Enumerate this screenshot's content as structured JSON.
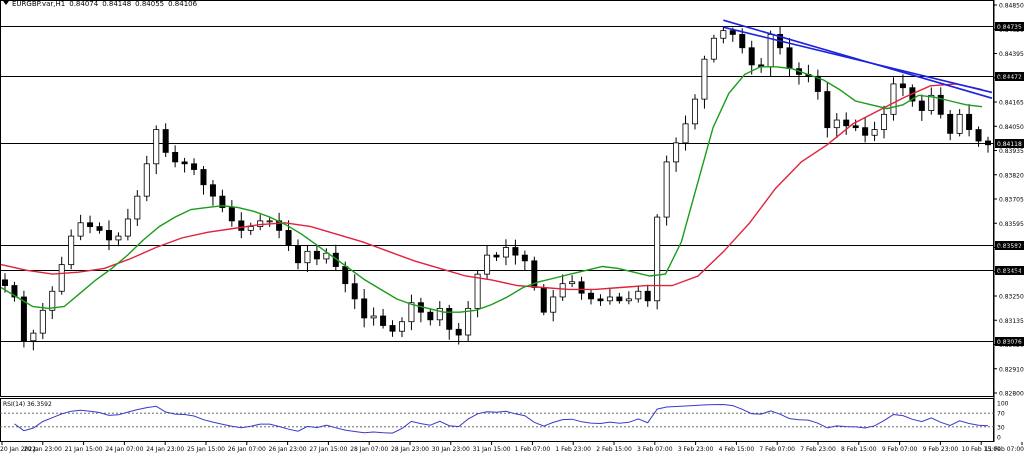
{
  "header": {
    "symbol": "EURGBP.var,H1",
    "open": "0.84074",
    "high": "0.84148",
    "low": "0.84055",
    "close": "0.84106"
  },
  "rsi": {
    "label": "RSI(14) 36.3592",
    "levels": [
      "100",
      "70",
      "30",
      "0"
    ]
  },
  "colors": {
    "candle": "#000000",
    "ma_fast": "#1a9c1a",
    "ma_slow": "#e0223c",
    "trendline": "#1c22dd",
    "level_line": "#000000",
    "rsi_line": "#3a3ac8"
  },
  "chart_data": {
    "type": "line",
    "title": "",
    "ylim": [
      0.828,
      0.8485
    ],
    "y_ticks": [
      "0.84850",
      "0.84620",
      "0.84395",
      "0.84280",
      "0.84165",
      "0.84050",
      "0.83935",
      "0.83820",
      "0.83705",
      "0.83595",
      "0.83480",
      "0.83365",
      "0.83250",
      "0.83135",
      "0.83020",
      "0.82910",
      "0.82800"
    ],
    "x_labels": [
      "20 Jan 2022",
      "20 Jan 23:00",
      "21 Jan 15:00",
      "24 Jan 07:00",
      "24 Jan 23:00",
      "25 Jan 15:00",
      "26 Jan 07:00",
      "26 Jan 23:00",
      "27 Jan 15:00",
      "28 Jan 07:00",
      "28 Jan 23:00",
      "30 Jan 23:00",
      "31 Jan 15:00",
      "1 Feb 07:00",
      "1 Feb 23:00",
      "2 Feb 15:00",
      "3 Feb 07:00",
      "3 Feb 23:00",
      "4 Feb 15:00",
      "7 Feb 07:00",
      "7 Feb 23:00",
      "8 Feb 15:00",
      "9 Feb 07:00",
      "9 Feb 23:00",
      "10 Feb 15:00",
      "11 Feb 07:00"
    ],
    "horizontal_levels": [
      {
        "value": 0.84735,
        "label": "0.84735"
      },
      {
        "value": 0.84472,
        "label": "0.84472"
      },
      {
        "value": 0.84118,
        "label": "0.84118"
      },
      {
        "value": 0.83582,
        "label": "0.83582"
      },
      {
        "value": 0.83454,
        "label": "0.83454"
      },
      {
        "value": 0.83076,
        "label": "0.83076"
      }
    ],
    "price_series": [
      0.8337,
      0.8331,
      0.8308,
      0.8312,
      0.8324,
      0.8334,
      0.8348,
      0.8363,
      0.837,
      0.8368,
      0.8366,
      0.8361,
      0.8363,
      0.8372,
      0.8384,
      0.8401,
      0.8419,
      0.8407,
      0.8402,
      0.8401,
      0.8398,
      0.839,
      0.8384,
      0.8378,
      0.8371,
      0.8366,
      0.8368,
      0.8371,
      0.8371,
      0.8366,
      0.8358,
      0.8349,
      0.8355,
      0.8351,
      0.8354,
      0.8347,
      0.8338,
      0.833,
      0.832,
      0.8321,
      0.8316,
      0.8313,
      0.8318,
      0.8328,
      0.8323,
      0.8319,
      0.8325,
      0.8314,
      0.8311,
      0.8325,
      0.8343,
      0.8353,
      0.8352,
      0.8357,
      0.8353,
      0.835,
      0.8336,
      0.8323,
      0.8331,
      0.8338,
      0.8339,
      0.8333,
      0.833,
      0.8329,
      0.8331,
      0.8329,
      0.833,
      0.8334,
      0.8329,
      0.8373,
      0.8402,
      0.8412,
      0.8422,
      0.8435,
      0.8456,
      0.8467,
      0.8471,
      0.8469,
      0.8462,
      0.8453,
      0.8452,
      0.8469,
      0.8462,
      0.8451,
      0.8448,
      0.8447,
      0.8439,
      0.842,
      0.8424,
      0.8421,
      0.842,
      0.8416,
      0.8419,
      0.8427,
      0.8443,
      0.8441,
      0.8434,
      0.8429,
      0.8437,
      0.8427,
      0.8417,
      0.8427,
      0.8419,
      0.8413,
      0.8411
    ],
    "ma_fast": [
      0.8336,
      0.8331,
      0.8326,
      0.8325,
      0.8326,
      0.8333,
      0.834,
      0.8346,
      0.8353,
      0.8361,
      0.8368,
      0.8373,
      0.8377,
      0.8378,
      0.8379,
      0.8378,
      0.8376,
      0.8373,
      0.8369,
      0.8364,
      0.8358,
      0.8352,
      0.8346,
      0.834,
      0.8335,
      0.833,
      0.8327,
      0.8325,
      0.8323,
      0.8323,
      0.8324,
      0.8327,
      0.8331,
      0.8336,
      0.8339,
      0.8341,
      0.8343,
      0.8345,
      0.8347,
      0.8346,
      0.8344,
      0.8342,
      0.8343,
      0.836,
      0.839,
      0.842,
      0.8438,
      0.8448,
      0.8452,
      0.8452,
      0.8451,
      0.8448,
      0.8445,
      0.844,
      0.8434,
      0.8432,
      0.843,
      0.8432,
      0.8437,
      0.8436,
      0.8434,
      0.8432,
      0.8431
    ],
    "ma_slow": [
      0.8348,
      0.8345,
      0.8343,
      0.8344,
      0.8346,
      0.8351,
      0.8357,
      0.8362,
      0.8365,
      0.8367,
      0.8369,
      0.837,
      0.8368,
      0.8364,
      0.836,
      0.8355,
      0.835,
      0.8346,
      0.8342,
      0.834,
      0.8337,
      0.8336,
      0.8335,
      0.8335,
      0.8336,
      0.8337,
      0.8337,
      0.8342,
      0.8355,
      0.837,
      0.8388,
      0.8402,
      0.8411,
      0.8422,
      0.8429,
      0.8436,
      0.8442,
      0.8443,
      0.844
    ]
  }
}
